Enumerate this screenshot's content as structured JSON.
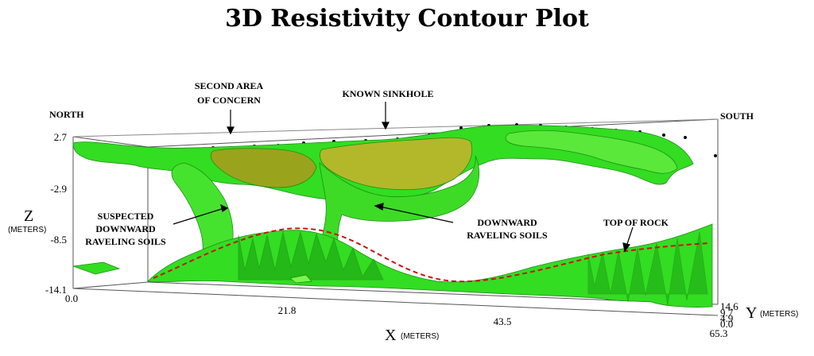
{
  "title": "3D Resistivity Contour Plot",
  "labels": {
    "north": "NORTH",
    "south": "SOUTH",
    "second_area_line1": "SECOND AREA",
    "second_area_line2": "OF CONCERN",
    "known_sinkhole": "KNOWN SINKHOLE",
    "suspected_line1": "SUSPECTED",
    "suspected_line2": "DOWNWARD",
    "suspected_line3": "RAVELING SOILS",
    "downward_line1": "DOWNWARD",
    "downward_line2": "RAVELING SOILS",
    "top_of_rock": "TOP OF ROCK"
  },
  "axes": {
    "z": {
      "label": "Z",
      "units": "(METERS)",
      "ticks": [
        "2.7",
        "-2.9",
        "-8.5",
        "-14.1"
      ]
    },
    "x": {
      "label": "X",
      "units": "(METERS)",
      "ticks": [
        "0.0",
        "21.8",
        "43.5",
        "65.3"
      ]
    },
    "y": {
      "label": "Y",
      "units": "(METERS)",
      "ticks": [
        "14.6",
        "9.7",
        "4.9",
        "0.0"
      ]
    }
  },
  "colors": {
    "surface_green": "#33dd22",
    "surface_light": "#7cf44a",
    "surface_dark": "#1c8f14",
    "surface_olive": "#9aa31c",
    "rock_line": "#cc1111",
    "box": "#555555"
  }
}
